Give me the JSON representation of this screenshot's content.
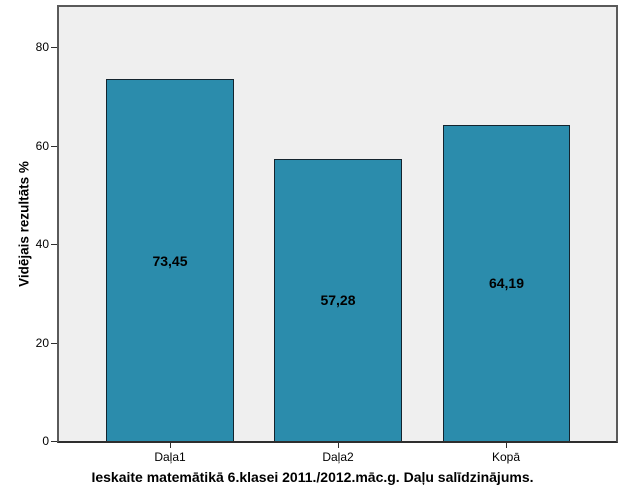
{
  "chart_data": {
    "type": "bar",
    "title": "Ieskaite matemātikā 6.klasei 2011./2012.māc.g. Daļu salīdzinājums.",
    "ylabel": "Vidējais rezultāts %",
    "xlabel": "",
    "categories": [
      "Daļa1",
      "Daļa2",
      "Kopā"
    ],
    "values": [
      73.45,
      57.28,
      64.19
    ],
    "values_display": [
      "73,45",
      "57,28",
      "64,19"
    ],
    "yticks": [
      0,
      20,
      40,
      60,
      80
    ],
    "yticks_display": [
      "0",
      "20",
      "40",
      "60",
      "80"
    ],
    "ylim": [
      0,
      88
    ],
    "grid": false,
    "legend": "none",
    "bar_color": "#2B8CAC",
    "bar_border_color": "#14242e",
    "plot_background": "#EFEFEF",
    "frame_color": "#5A5A5A",
    "axis_color": "#2E2E2E",
    "text_color": "#000000"
  }
}
